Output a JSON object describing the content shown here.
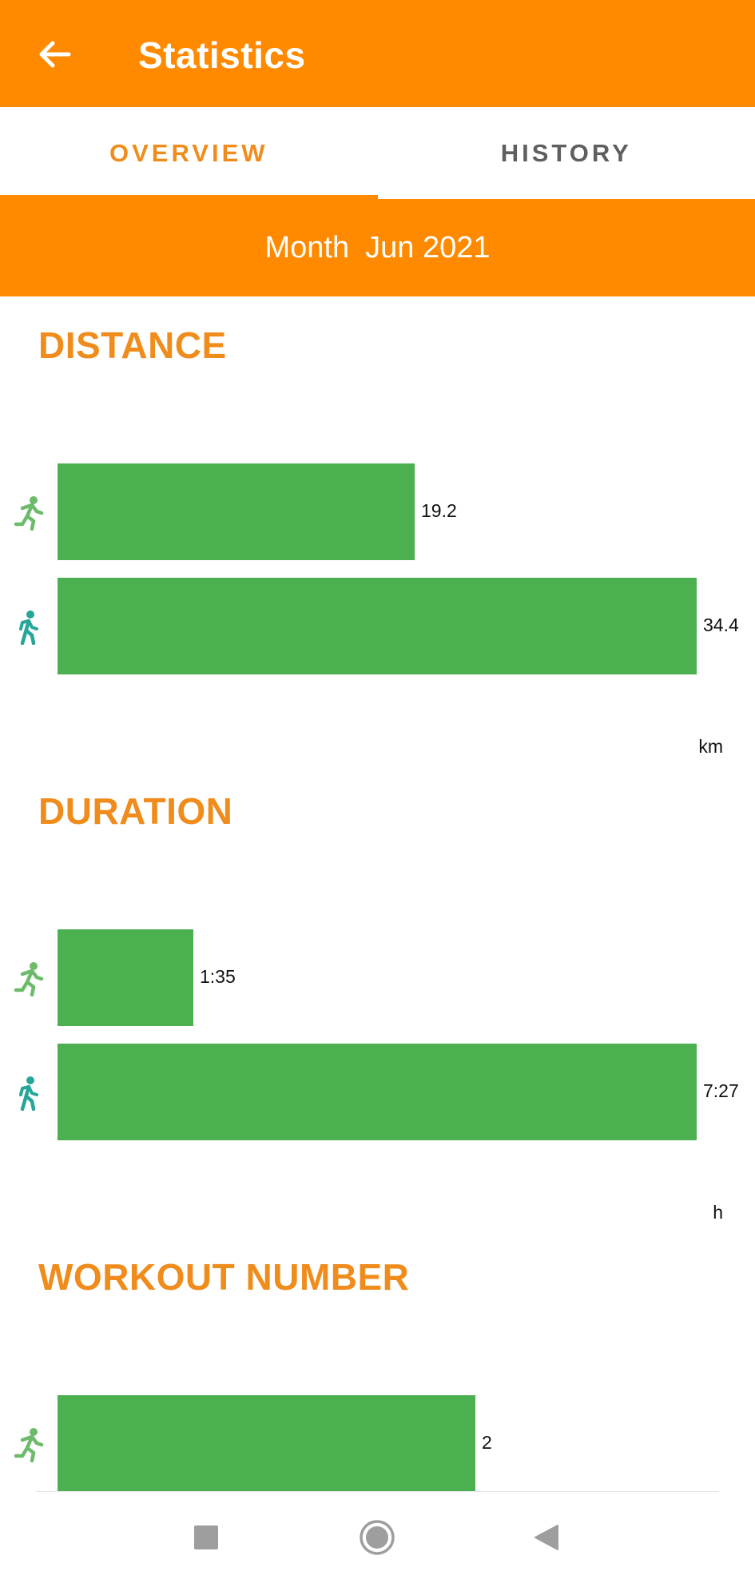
{
  "appbar": {
    "title": "Statistics",
    "back_icon": "arrow-back-icon"
  },
  "tabs": [
    {
      "label": "OVERVIEW",
      "active": true
    },
    {
      "label": "HISTORY",
      "active": false
    }
  ],
  "period": {
    "label": "Month",
    "value": "Jun 2021"
  },
  "sections": {
    "distance": {
      "title": "DISTANCE",
      "unit": "km",
      "rows": [
        {
          "icon": "running-icon",
          "value": 19.2,
          "label": "19.2"
        },
        {
          "icon": "walking-icon",
          "value": 34.4,
          "label": "34.4"
        }
      ]
    },
    "duration": {
      "title": "DURATION",
      "unit": "h",
      "rows": [
        {
          "icon": "running-icon",
          "value": 1.5833,
          "label": "1:35"
        },
        {
          "icon": "walking-icon",
          "value": 7.45,
          "label": "7:27"
        }
      ]
    },
    "workouts": {
      "title": "WORKOUT NUMBER",
      "rows": [
        {
          "icon": "running-icon",
          "value": 2,
          "label": "2"
        }
      ]
    }
  },
  "colors": {
    "accent": "#FF8A00",
    "title": "#F08C1C",
    "bar": "#4CAF50",
    "run_icon": "#6DBB6A",
    "walk_icon": "#26A69A"
  },
  "navbar": [
    "recents-square-icon",
    "home-circle-icon",
    "back-triangle-icon"
  ]
}
